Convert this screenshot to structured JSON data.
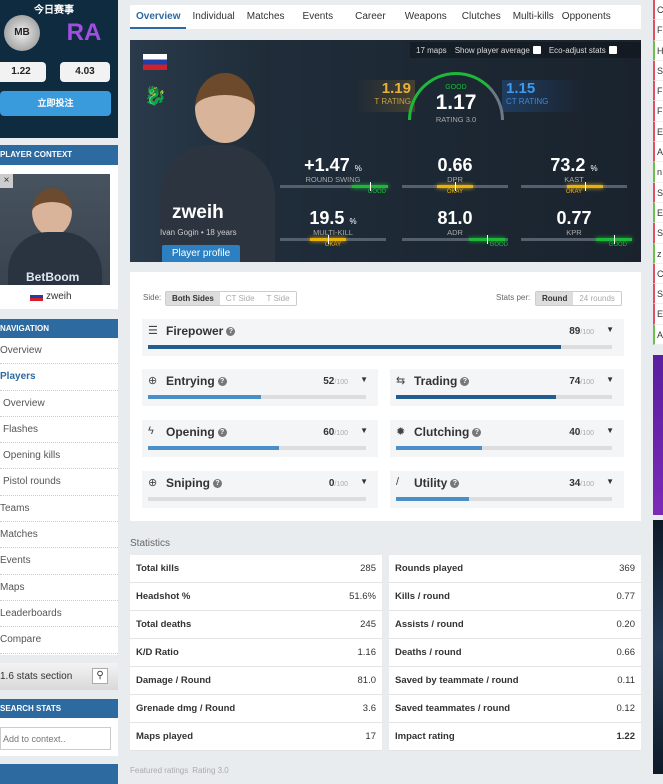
{
  "promo": {
    "title": "今日赛事",
    "team1_logo": "MB",
    "team2_logo": "RA",
    "odds1": "1.22",
    "odds2": "4.03",
    "bet_label": "立即投注"
  },
  "context": {
    "header": "PLAYER CONTEXT",
    "name": "zweih",
    "close": "×"
  },
  "navigation": {
    "header": "NAVIGATION",
    "items": [
      "Overview",
      "Players",
      "Overview",
      "Flashes",
      "Opening kills",
      "Pistol rounds",
      "Teams",
      "Matches",
      "Events",
      "Maps",
      "Leaderboards",
      "Compare"
    ]
  },
  "old_stats": {
    "label": "1.6 stats section"
  },
  "search": {
    "header": "SEARCH STATS",
    "placeholder": "Add to context.."
  },
  "tabs": [
    "Overview",
    "Individual",
    "Matches",
    "Events",
    "Career",
    "Weapons",
    "Clutches",
    "Multi-kills",
    "Opponents"
  ],
  "hero": {
    "name": "zweih",
    "real_name": "Ivan Gogin",
    "age": "18 years",
    "profile_btn": "Player profile",
    "maps": "17 maps",
    "show_avg": "Show player average",
    "eco": "Eco-adjust stats",
    "t_rating": "1.19",
    "t_label": "T RATING",
    "ct_rating": "1.15",
    "ct_label": "CT RATING",
    "rating": "1.17",
    "rating_label": "RATING 3.0",
    "rating_grade": "GOOD",
    "stats": [
      {
        "value": "+1.47",
        "unit": "%",
        "label": "ROUND SWING",
        "grade": "GOOD",
        "fill": 0.85,
        "color": "#1db83a"
      },
      {
        "value": "0.66",
        "unit": "",
        "label": "DPR",
        "grade": "OKAY",
        "fill": 0.5,
        "color": "#e8b10c"
      },
      {
        "value": "73.2",
        "unit": "%",
        "label": "KAST",
        "grade": "OKAY",
        "fill": 0.6,
        "color": "#e8b10c"
      },
      {
        "value": "19.5",
        "unit": "%",
        "label": "MULTI-KILL",
        "grade": "OKAY",
        "fill": 0.45,
        "color": "#e8b10c"
      },
      {
        "value": "81.0",
        "unit": "",
        "label": "ADR",
        "grade": "GOOD",
        "fill": 0.8,
        "color": "#1db83a"
      },
      {
        "value": "0.77",
        "unit": "",
        "label": "KPR",
        "grade": "GOOD",
        "fill": 0.88,
        "color": "#1db83a"
      }
    ]
  },
  "filters": {
    "side_label": "Side:",
    "sides": [
      "Both Sides",
      "CT Side",
      "T Side"
    ],
    "per_label": "Stats per:",
    "per": [
      "Round",
      "24 rounds"
    ]
  },
  "roles": [
    {
      "name": "Firepower",
      "icon": "firepower-icon",
      "glyph": "☰",
      "score": "89",
      "max": "/100",
      "pct": 89
    },
    {
      "name": "Entrying",
      "icon": "entrying-icon",
      "glyph": "⊕",
      "score": "52",
      "max": "/100",
      "pct": 52
    },
    {
      "name": "Trading",
      "icon": "trading-icon",
      "glyph": "⇆",
      "score": "74",
      "max": "/100",
      "pct": 74
    },
    {
      "name": "Opening",
      "icon": "opening-icon",
      "glyph": "ϟ",
      "score": "60",
      "max": "/100",
      "pct": 60
    },
    {
      "name": "Clutching",
      "icon": "clutching-icon",
      "glyph": "✹",
      "score": "40",
      "max": "/100",
      "pct": 40
    },
    {
      "name": "Sniping",
      "icon": "sniping-icon",
      "glyph": "⊕",
      "score": "0",
      "max": "/100",
      "pct": 0
    },
    {
      "name": "Utility",
      "icon": "utility-icon",
      "glyph": "/",
      "score": "34",
      "max": "/100",
      "pct": 34
    }
  ],
  "statistics": {
    "title": "Statistics",
    "left": [
      [
        "Total kills",
        "285"
      ],
      [
        "Headshot %",
        "51.6%"
      ],
      [
        "Total deaths",
        "245"
      ],
      [
        "K/D Ratio",
        "1.16"
      ],
      [
        "Damage / Round",
        "81.0"
      ],
      [
        "Grenade dmg / Round",
        "3.6"
      ],
      [
        "Maps played",
        "17"
      ]
    ],
    "right": [
      [
        "Rounds played",
        "369"
      ],
      [
        "Kills / round",
        "0.77"
      ],
      [
        "Assists / round",
        "0.20"
      ],
      [
        "Deaths / round",
        "0.66"
      ],
      [
        "Saved by teammate / round",
        "0.11"
      ],
      [
        "Saved teammates / round",
        "0.12"
      ],
      [
        "Impact rating",
        "1.22"
      ]
    ]
  },
  "featured": {
    "title": "Featured ratings",
    "sub": "Rating 3.0"
  },
  "right_strip": [
    "C",
    "F",
    "H",
    "S",
    "F",
    "F",
    "E",
    "A",
    "n",
    "S",
    "E",
    "S",
    "z",
    "C",
    "S",
    "E",
    "A"
  ]
}
